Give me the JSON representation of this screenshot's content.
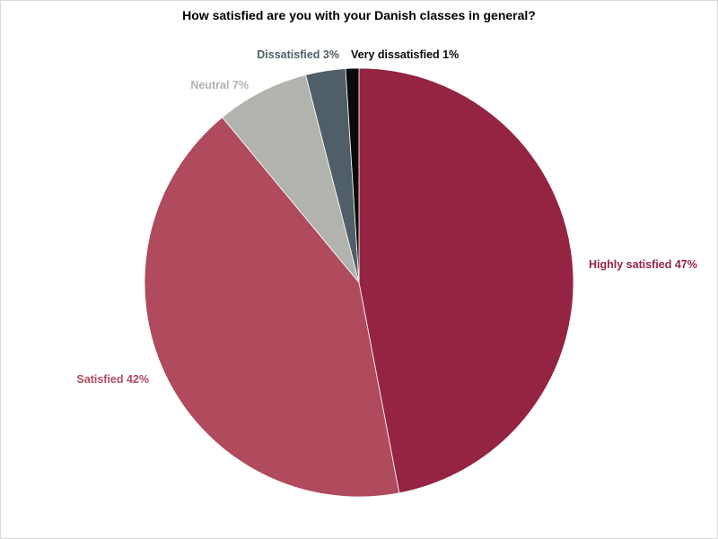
{
  "chart_data": {
    "type": "pie",
    "title": "How satisfied are you with your Danish classes in general?",
    "slices": [
      {
        "label": "Highly satisfied 47%",
        "category": "Highly satisfied",
        "value": 47,
        "color": "#942442"
      },
      {
        "label": "Satisfied 42%",
        "category": "Satisfied",
        "value": 42,
        "color": "#b04a5d"
      },
      {
        "label": "Neutral 7%",
        "category": "Neutral",
        "value": 7,
        "color": "#b2b3ae"
      },
      {
        "label": "Dissatisfied 3%",
        "category": "Dissatisfied",
        "value": 3,
        "color": "#505f67"
      },
      {
        "label": "Very dissatisfied 1%",
        "category": "Very dissatisfied",
        "value": 1,
        "color": "#0a0a0a"
      }
    ],
    "start_angle": "12 o'clock",
    "direction": "clockwise",
    "legend": "none"
  }
}
